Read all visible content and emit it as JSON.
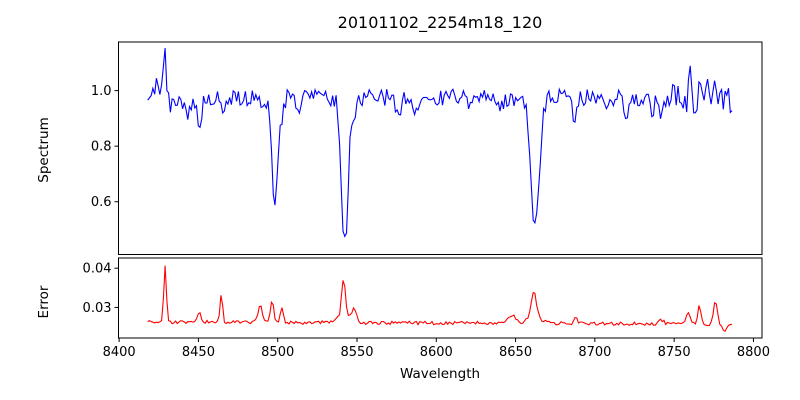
{
  "chart_data": {
    "type": "line",
    "title": "20101102_2254m18_120",
    "xlabel": "Wavelength",
    "xlim": [
      8399.6,
      8805.4
    ],
    "xticks": [
      8400,
      8450,
      8500,
      8550,
      8600,
      8650,
      8700,
      8750,
      8800
    ],
    "grid": false,
    "legend": "none",
    "background_color": "#ffffff",
    "axis_color": "#000000",
    "panels": [
      {
        "name": "spectrum",
        "ylabel": "Spectrum",
        "color": "#0000ff",
        "ylim": [
          0.41,
          1.175
        ],
        "yticks": [
          {
            "v": 0.6,
            "label": "0.6"
          },
          {
            "v": 0.8,
            "label": "0.8"
          },
          {
            "v": 1.0,
            "label": "1.0"
          }
        ],
        "x_start": 8418,
        "x_end": 8787,
        "step": 1.1,
        "baseline": 0.975,
        "noise": 0.031,
        "seed": 20101102,
        "noise_zones": [
          {
            "from": 8418,
            "to": 8436,
            "mult": 1.4
          },
          {
            "from": 8748,
            "to": 8787,
            "mult": 1.9
          }
        ],
        "features": [
          {
            "c": 8424.0,
            "a": 0.05,
            "s": 0.9
          },
          {
            "c": 8428.5,
            "a": 0.16,
            "s": 1.1
          },
          {
            "c": 8434.0,
            "a": -0.05,
            "s": 1.0
          },
          {
            "c": 8443.0,
            "a": -0.07,
            "s": 1.8
          },
          {
            "c": 8450.5,
            "a": -0.12,
            "s": 1.2
          },
          {
            "c": 8466.0,
            "a": -0.04,
            "s": 1.4
          },
          {
            "c": 8490.0,
            "a": -0.05,
            "s": 1.4
          },
          {
            "c": 8498.3,
            "a": -0.4,
            "s": 1.7
          },
          {
            "c": 8502.5,
            "a": -0.06,
            "s": 1.4
          },
          {
            "c": 8513.0,
            "a": -0.06,
            "s": 1.4
          },
          {
            "c": 8542.3,
            "a": -0.53,
            "s": 2.1
          },
          {
            "c": 8548.5,
            "a": -0.07,
            "s": 1.6
          },
          {
            "c": 8576.0,
            "a": -0.06,
            "s": 1.4
          },
          {
            "c": 8587.0,
            "a": -0.05,
            "s": 1.8
          },
          {
            "c": 8621.0,
            "a": -0.04,
            "s": 1.6
          },
          {
            "c": 8640.0,
            "a": -0.05,
            "s": 1.5
          },
          {
            "c": 8662.3,
            "a": -0.47,
            "s": 2.6
          },
          {
            "c": 8687.0,
            "a": -0.09,
            "s": 1.2
          },
          {
            "c": 8707.0,
            "a": -0.06,
            "s": 1.2
          },
          {
            "c": 8720.0,
            "a": -0.08,
            "s": 1.2
          },
          {
            "c": 8736.0,
            "a": -0.08,
            "s": 1.0
          },
          {
            "c": 8742.0,
            "a": -0.08,
            "s": 1.0
          },
          {
            "c": 8760.0,
            "a": 0.08,
            "s": 0.9
          },
          {
            "c": 8770.0,
            "a": 0.07,
            "s": 0.8
          },
          {
            "c": 8776.0,
            "a": 0.09,
            "s": 0.8
          }
        ],
        "readings": {
          "continuum_level": 0.97,
          "emission_peak": {
            "wavelength": 8429,
            "value": 1.15
          },
          "absorption_minima": [
            {
              "wavelength": 8498,
              "value": 0.61
            },
            {
              "wavelength": 8542,
              "value": 0.45
            },
            {
              "wavelength": 8662,
              "value": 0.51
            }
          ]
        }
      },
      {
        "name": "error",
        "ylabel": "Error",
        "color": "#ff0000",
        "ylim": [
          0.0222,
          0.0426
        ],
        "yticks": [
          {
            "v": 0.03,
            "label": "0.03"
          },
          {
            "v": 0.04,
            "label": "0.04"
          }
        ],
        "x_start": 8418,
        "x_end": 8787,
        "step": 1.1,
        "baseline": 0.0263,
        "slope_per_angstrom": -1.5e-06,
        "noise": 0.00045,
        "seed": 2254,
        "noise_zones": [],
        "features": [
          {
            "c": 8429.0,
            "a": 0.0147,
            "s": 0.8
          },
          {
            "c": 8450.5,
            "a": 0.003,
            "s": 1.0
          },
          {
            "c": 8464.5,
            "a": 0.0072,
            "s": 0.8
          },
          {
            "c": 8489.0,
            "a": 0.004,
            "s": 1.3
          },
          {
            "c": 8496.5,
            "a": 0.0058,
            "s": 1.0
          },
          {
            "c": 8502.5,
            "a": 0.0035,
            "s": 1.0
          },
          {
            "c": 8541.5,
            "a": 0.0092,
            "s": 1.2
          },
          {
            "c": 8542.0,
            "a": 0.0018,
            "s": 4.0
          },
          {
            "c": 8548.0,
            "a": 0.0028,
            "s": 1.5
          },
          {
            "c": 8648.0,
            "a": 0.0018,
            "s": 2.5
          },
          {
            "c": 8661.5,
            "a": 0.0062,
            "s": 1.5
          },
          {
            "c": 8662.0,
            "a": 0.0018,
            "s": 4.0
          },
          {
            "c": 8688.0,
            "a": 0.0012,
            "s": 1.0
          },
          {
            "c": 8742.0,
            "a": 0.0009,
            "s": 1.5
          },
          {
            "c": 8759.0,
            "a": 0.0032,
            "s": 1.1
          },
          {
            "c": 8766.0,
            "a": 0.0048,
            "s": 0.9
          },
          {
            "c": 8776.0,
            "a": 0.0058,
            "s": 1.1
          },
          {
            "c": 8782.0,
            "a": -0.0022,
            "s": 1.2
          }
        ],
        "readings": {
          "baseline_level": 0.026,
          "peaks": [
            {
              "wavelength": 8429,
              "value": 0.041
            },
            {
              "wavelength": 8464,
              "value": 0.034
            },
            {
              "wavelength": 8497,
              "value": 0.032
            },
            {
              "wavelength": 8542,
              "value": 0.037
            },
            {
              "wavelength": 8662,
              "value": 0.034
            },
            {
              "wavelength": 8766,
              "value": 0.031
            },
            {
              "wavelength": 8776,
              "value": 0.032
            }
          ]
        }
      }
    ]
  }
}
